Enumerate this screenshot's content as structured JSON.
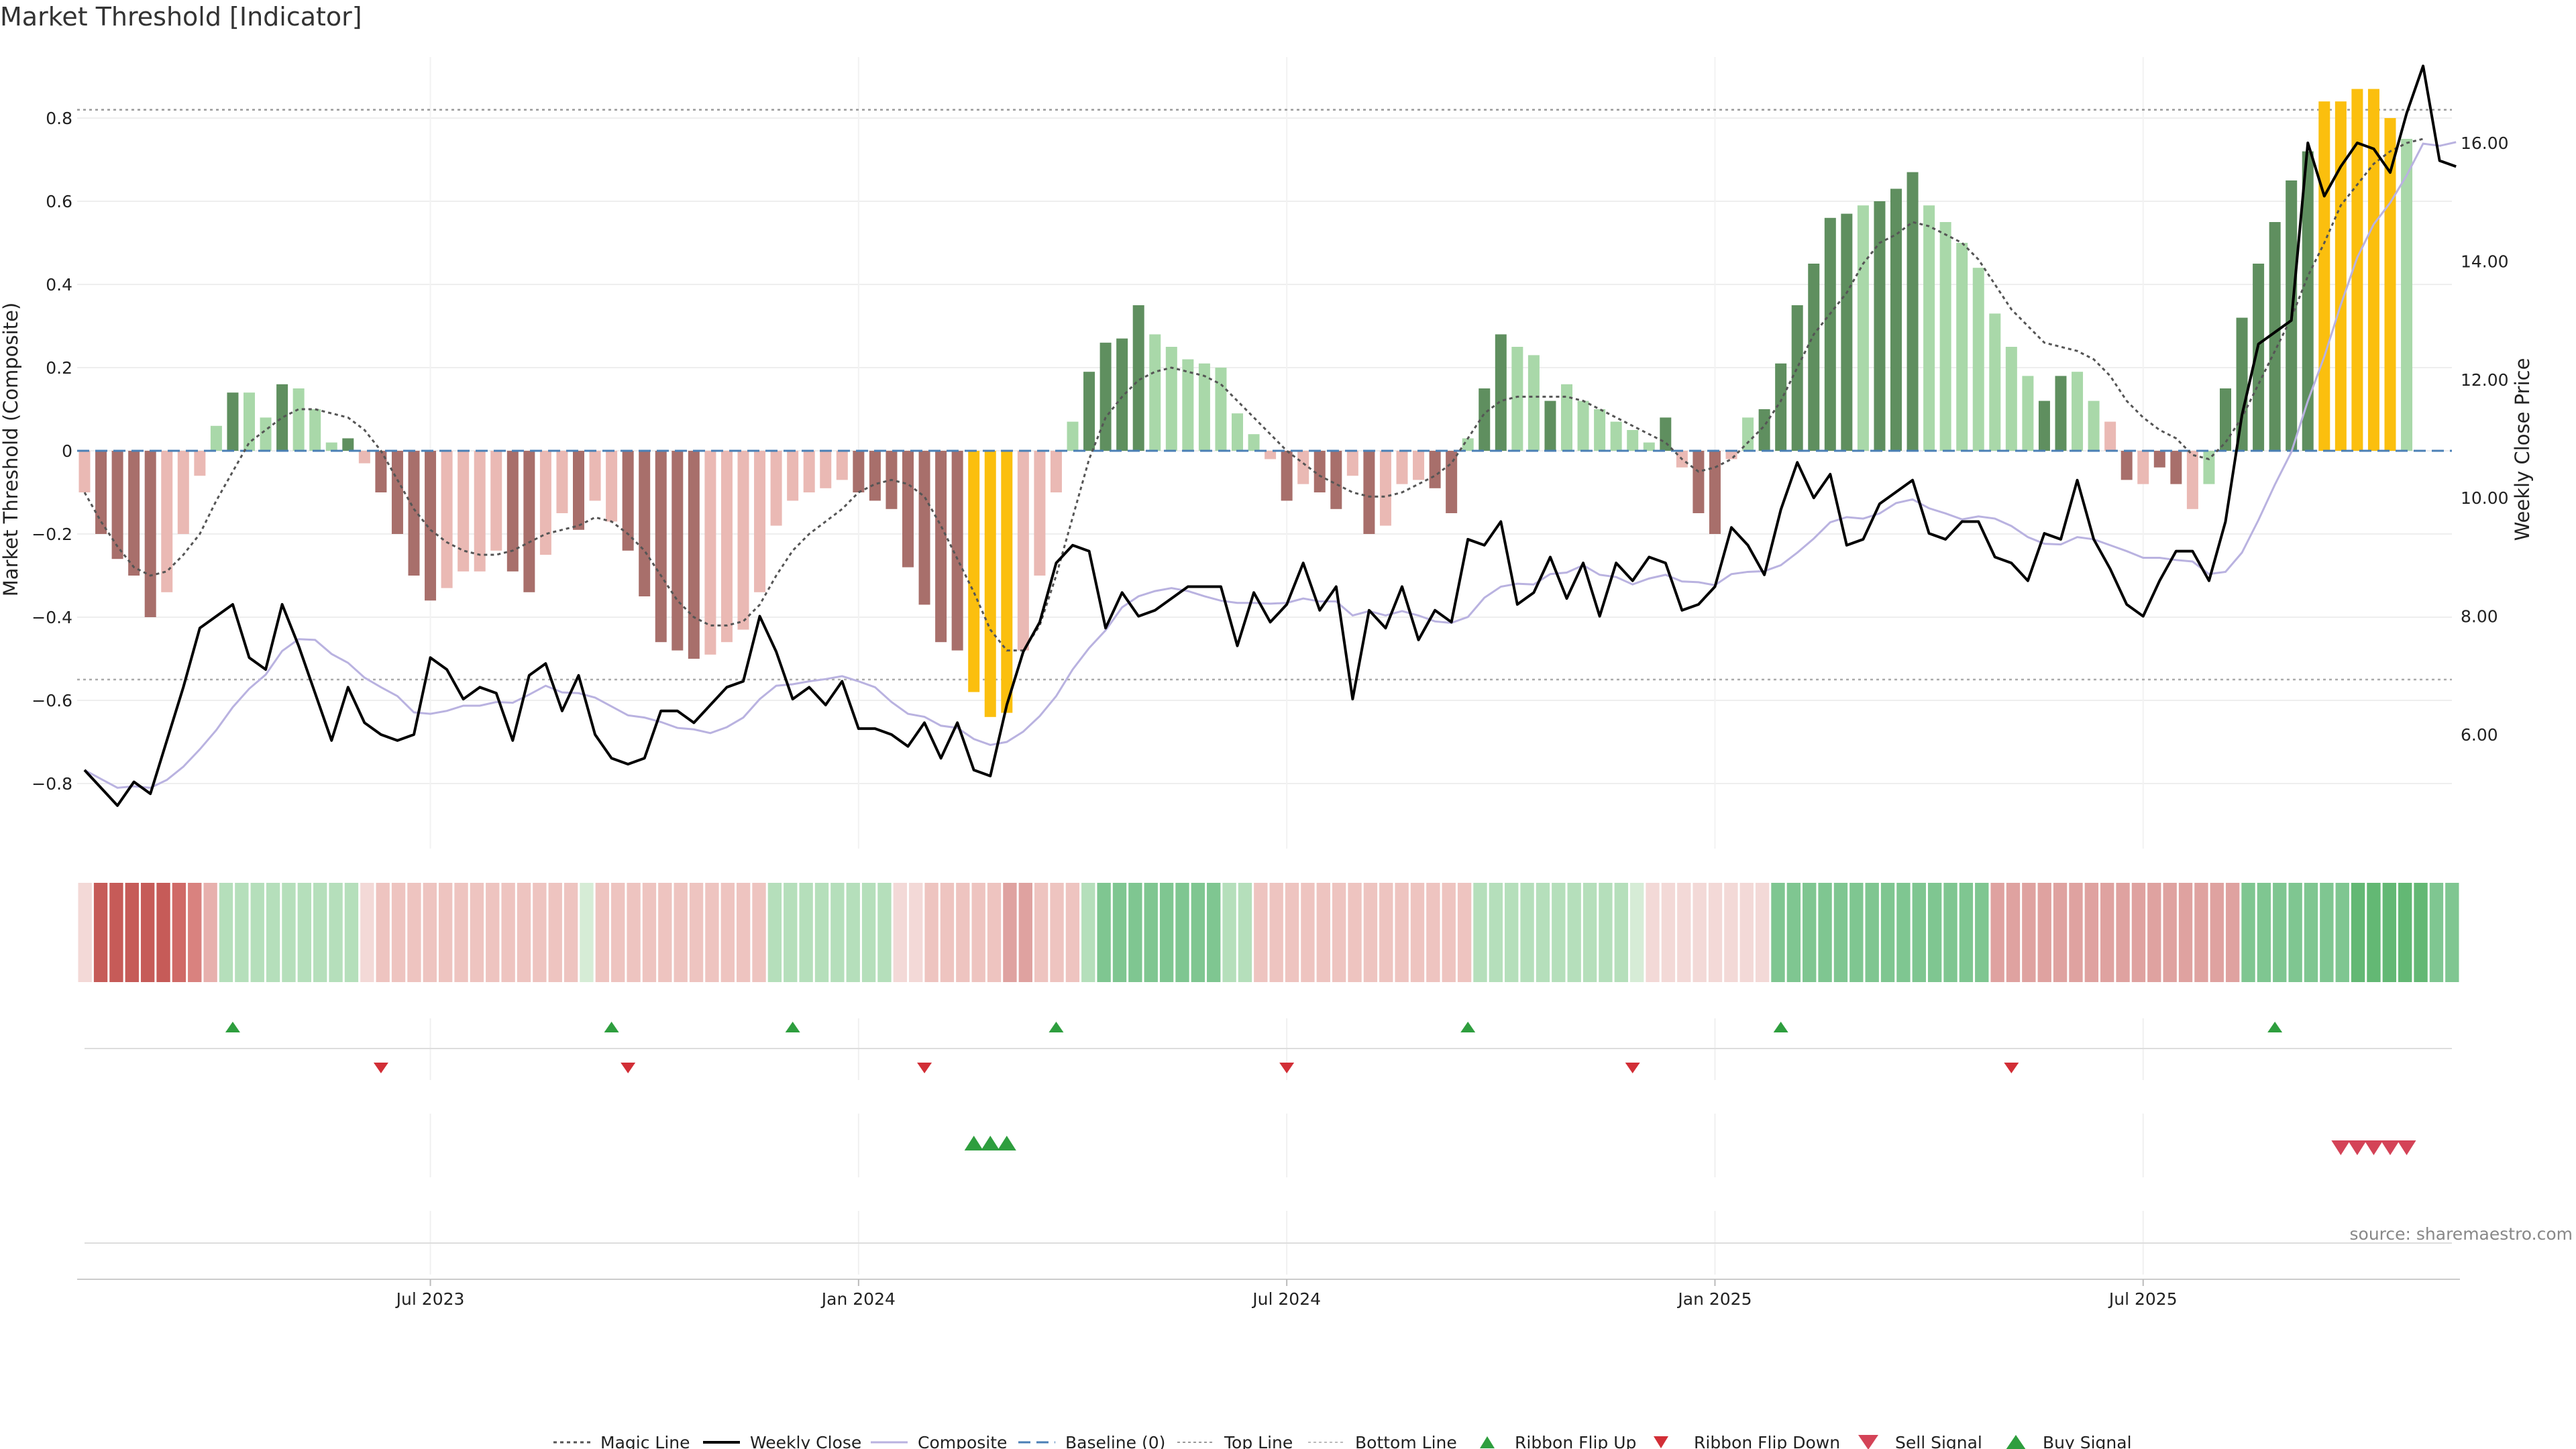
{
  "chart_data": {
    "type": "bar",
    "title": "Market Threshold [Indicator]",
    "ylabel": "Market Threshold (Composite)",
    "y2label": "Weekly Close Price",
    "source": "source: sharemaestro.com",
    "ylim": [
      -0.95,
      0.95
    ],
    "y2lim": [
      4.5,
      18.0
    ],
    "yticks": [
      -0.8,
      -0.6,
      -0.4,
      -0.2,
      0,
      0.2,
      0.4,
      0.6,
      0.8
    ],
    "ytick_labels": [
      "−0.8",
      "−0.6",
      "−0.4",
      "−0.2",
      "0",
      "0.2",
      "0.4",
      "0.6",
      "0.8"
    ],
    "y2ticks": [
      6,
      8,
      10,
      12,
      14,
      16
    ],
    "y2tick_labels": [
      "6.00",
      "8.00",
      "10.00",
      "12.00",
      "14.00",
      "16.00"
    ],
    "x_dates": [
      "Jul 2023",
      "Jan 2024",
      "Jul 2024",
      "Jan 2025",
      "Jul 2025"
    ],
    "x_tick_weeks": [
      21,
      47,
      73,
      99,
      125
    ],
    "top_line": 0.82,
    "bottom_line": -0.55,
    "composite": [
      -0.1,
      -0.2,
      -0.26,
      -0.3,
      -0.4,
      -0.34,
      -0.2,
      -0.06,
      0.06,
      0.14,
      0.14,
      0.08,
      0.16,
      0.15,
      0.1,
      0.02,
      0.03,
      -0.03,
      -0.1,
      -0.2,
      -0.3,
      -0.36,
      -0.33,
      -0.29,
      -0.29,
      -0.24,
      -0.29,
      -0.34,
      -0.25,
      -0.15,
      -0.19,
      -0.12,
      -0.17,
      -0.24,
      -0.35,
      -0.46,
      -0.48,
      -0.5,
      -0.49,
      -0.46,
      -0.43,
      -0.34,
      -0.18,
      -0.12,
      -0.1,
      -0.09,
      -0.07,
      -0.1,
      -0.12,
      -0.14,
      -0.28,
      -0.37,
      -0.46,
      -0.48,
      -0.58,
      -0.64,
      -0.63,
      -0.48,
      -0.3,
      -0.1,
      0.07,
      0.19,
      0.26,
      0.27,
      0.35,
      0.28,
      0.25,
      0.22,
      0.21,
      0.2,
      0.09,
      0.04,
      -0.02,
      -0.12,
      -0.08,
      -0.1,
      -0.14,
      -0.06,
      -0.2,
      -0.18,
      -0.08,
      -0.07,
      -0.09,
      -0.15,
      0.03,
      0.15,
      0.28,
      0.25,
      0.23,
      0.12,
      0.16,
      0.12,
      0.1,
      0.07,
      0.05,
      0.02,
      0.08,
      -0.04,
      -0.15,
      -0.2,
      -0.02,
      0.08,
      0.1,
      0.21,
      0.35,
      0.45,
      0.56,
      0.57,
      0.59,
      0.6,
      0.63,
      0.67,
      0.59,
      0.55,
      0.5,
      0.44,
      0.33,
      0.25,
      0.18,
      0.12,
      0.18,
      0.19,
      0.12,
      0.07,
      -0.07,
      -0.08,
      -0.04,
      -0.08,
      -0.14,
      -0.08,
      0.15,
      0.32,
      0.45,
      0.55,
      0.65,
      0.72,
      0.84,
      0.84,
      0.87,
      0.87,
      0.8,
      0.75
    ],
    "bar_tone": [
      "lr",
      "dr",
      "dr",
      "dr",
      "dr",
      "lr",
      "lr",
      "lr",
      "lg",
      "dg",
      "lg",
      "lg",
      "dg",
      "lg",
      "lg",
      "lg",
      "dg",
      "lr",
      "dr",
      "dr",
      "dr",
      "dr",
      "lr",
      "lr",
      "lr",
      "lr",
      "dr",
      "dr",
      "lr",
      "lr",
      "dr",
      "lr",
      "lr",
      "dr",
      "dr",
      "dr",
      "dr",
      "dr",
      "lr",
      "lr",
      "lr",
      "lr",
      "lr",
      "lr",
      "lr",
      "lr",
      "lr",
      "dr",
      "dr",
      "dr",
      "dr",
      "dr",
      "dr",
      "dr",
      "y",
      "y",
      "y",
      "lr",
      "lr",
      "lr",
      "lg",
      "dg",
      "dg",
      "dg",
      "dg",
      "lg",
      "lg",
      "lg",
      "lg",
      "lg",
      "lg",
      "lg",
      "lr",
      "dr",
      "lr",
      "dr",
      "dr",
      "lr",
      "dr",
      "lr",
      "lr",
      "lr",
      "dr",
      "dr",
      "lg",
      "dg",
      "dg",
      "lg",
      "lg",
      "dg",
      "lg",
      "lg",
      "lg",
      "lg",
      "lg",
      "lg",
      "dg",
      "lr",
      "dr",
      "dr",
      "lr",
      "lg",
      "dg",
      "dg",
      "dg",
      "dg",
      "dg",
      "dg",
      "lg",
      "dg",
      "dg",
      "dg",
      "lg",
      "lg",
      "lg",
      "lg",
      "lg",
      "lg",
      "lg",
      "dg",
      "dg",
      "lg",
      "lg",
      "lr",
      "dr",
      "lr",
      "dr",
      "dr",
      "lr",
      "lg",
      "dg",
      "dg",
      "dg",
      "dg",
      "dg",
      "dg",
      "y",
      "y",
      "y",
      "y",
      "y",
      "lg"
    ],
    "magic_line": [
      -0.1,
      -0.17,
      -0.23,
      -0.28,
      -0.3,
      -0.29,
      -0.25,
      -0.2,
      -0.12,
      -0.05,
      0.02,
      0.05,
      0.08,
      0.1,
      0.1,
      0.09,
      0.08,
      0.05,
      0.0,
      -0.07,
      -0.14,
      -0.19,
      -0.22,
      -0.24,
      -0.25,
      -0.25,
      -0.24,
      -0.22,
      -0.2,
      -0.19,
      -0.18,
      -0.16,
      -0.17,
      -0.2,
      -0.24,
      -0.3,
      -0.36,
      -0.4,
      -0.42,
      -0.42,
      -0.41,
      -0.37,
      -0.3,
      -0.24,
      -0.2,
      -0.17,
      -0.14,
      -0.1,
      -0.08,
      -0.07,
      -0.08,
      -0.11,
      -0.18,
      -0.26,
      -0.34,
      -0.43,
      -0.48,
      -0.48,
      -0.42,
      -0.3,
      -0.16,
      -0.02,
      0.08,
      0.13,
      0.17,
      0.19,
      0.2,
      0.19,
      0.18,
      0.16,
      0.12,
      0.08,
      0.04,
      0.0,
      -0.03,
      -0.06,
      -0.08,
      -0.1,
      -0.11,
      -0.11,
      -0.1,
      -0.08,
      -0.06,
      -0.03,
      0.03,
      0.09,
      0.12,
      0.13,
      0.13,
      0.13,
      0.13,
      0.12,
      0.1,
      0.08,
      0.06,
      0.04,
      0.02,
      -0.02,
      -0.05,
      -0.04,
      -0.02,
      0.02,
      0.06,
      0.12,
      0.2,
      0.28,
      0.33,
      0.38,
      0.45,
      0.5,
      0.52,
      0.55,
      0.54,
      0.52,
      0.5,
      0.46,
      0.4,
      0.34,
      0.3,
      0.26,
      0.25,
      0.24,
      0.22,
      0.18,
      0.12,
      0.08,
      0.05,
      0.03,
      -0.01,
      -0.02,
      0.02,
      0.08,
      0.16,
      0.24,
      0.32,
      0.42,
      0.5,
      0.59,
      0.64,
      0.69,
      0.72,
      0.74,
      0.75
    ],
    "weekly_close": [
      5.4,
      5.1,
      4.8,
      5.2,
      5.0,
      5.9,
      6.8,
      7.8,
      8.0,
      8.2,
      7.3,
      7.1,
      8.2,
      7.5,
      6.7,
      5.9,
      6.8,
      6.2,
      6.0,
      5.9,
      6.0,
      7.3,
      7.1,
      6.6,
      6.8,
      6.7,
      5.9,
      7.0,
      7.2,
      6.4,
      7.0,
      6.0,
      5.6,
      5.5,
      5.6,
      6.4,
      6.4,
      6.2,
      6.5,
      6.8,
      6.9,
      8.0,
      7.4,
      6.6,
      6.8,
      6.5,
      6.9,
      6.1,
      6.1,
      6.0,
      5.8,
      6.2,
      5.6,
      6.2,
      5.4,
      5.3,
      6.5,
      7.4,
      7.9,
      8.9,
      9.2,
      9.1,
      7.8,
      8.4,
      8.0,
      8.1,
      8.3,
      8.5,
      8.5,
      8.5,
      7.5,
      8.4,
      7.9,
      8.2,
      8.9,
      8.1,
      8.5,
      6.6,
      8.1,
      7.8,
      8.5,
      7.6,
      8.1,
      7.9,
      9.3,
      9.2,
      9.6,
      8.2,
      8.4,
      9.0,
      8.3,
      8.9,
      8.0,
      8.9,
      8.6,
      9.0,
      8.9,
      8.1,
      8.2,
      8.5,
      9.5,
      9.2,
      8.7,
      9.8,
      10.6,
      10.0,
      10.4,
      9.2,
      9.3,
      9.9,
      10.1,
      10.3,
      9.4,
      9.3,
      9.6,
      9.6,
      9.0,
      8.9,
      8.6,
      9.4,
      9.3,
      10.3,
      9.3,
      8.8,
      8.2,
      8.0,
      8.6,
      9.1,
      9.1,
      8.6,
      9.6,
      11.4,
      12.6,
      12.8,
      13.0,
      16.0,
      15.1,
      15.6,
      16.0,
      15.9,
      15.5,
      16.5,
      17.3,
      15.7,
      15.6
    ]
  },
  "legend": {
    "magic_line": "Magic Line",
    "weekly_close": "Weekly Close",
    "composite": "Composite",
    "baseline": "Baseline (0)",
    "top_line": "Top Line",
    "bottom_line": "Bottom Line",
    "ribbon_flip_up": "Ribbon Flip Up",
    "ribbon_flip_down": "Ribbon Flip Down",
    "sell_signal": "Sell Signal",
    "buy_signal": "Buy Signal"
  },
  "ribbon": {
    "tones": [
      "L1",
      "R4",
      "R4",
      "R4",
      "R4",
      "R4",
      "R3",
      "R2",
      "R1",
      "G2",
      "G2",
      "G2",
      "G2",
      "G2",
      "G2",
      "G2",
      "G2",
      "G2",
      "L1",
      "L2",
      "L2",
      "L2",
      "L2",
      "L2",
      "L2",
      "L2",
      "L2",
      "L2",
      "L2",
      "L2",
      "L2",
      "L2",
      "G1",
      "L2",
      "L2",
      "L2",
      "L2",
      "L2",
      "L2",
      "L2",
      "L2",
      "L2",
      "L2",
      "L2",
      "G2",
      "G2",
      "G2",
      "G2",
      "G2",
      "G2",
      "G2",
      "G2",
      "L1",
      "L1",
      "L2",
      "L2",
      "L2",
      "L2",
      "L2",
      "L3",
      "L3",
      "L2",
      "L2",
      "L2",
      "G2",
      "G3",
      "G3",
      "G3",
      "G3",
      "G3",
      "G3",
      "G3",
      "G3",
      "G2",
      "G2",
      "L2",
      "L2",
      "L2",
      "L2",
      "L2",
      "L2",
      "L2",
      "L2",
      "L2",
      "L2",
      "L2",
      "L2",
      "L2",
      "L2",
      "G2",
      "G2",
      "G2",
      "G2",
      "G2",
      "G2",
      "G2",
      "G2",
      "G2",
      "G2",
      "G1",
      "L1",
      "L1",
      "L1",
      "L1",
      "L1",
      "L1",
      "L1",
      "L1",
      "G3",
      "G3",
      "G3",
      "G3",
      "G3",
      "G3",
      "G3",
      "G3",
      "G3",
      "G3",
      "G3",
      "G3",
      "G3",
      "G3",
      "L3",
      "L3",
      "L3",
      "L3",
      "L3",
      "L3",
      "L3",
      "L3",
      "L3",
      "L3",
      "L3",
      "L3",
      "L3",
      "L3",
      "L3",
      "L3",
      "G3",
      "G3",
      "G3",
      "G3",
      "G3",
      "G3",
      "G3",
      "G4",
      "G4",
      "G4",
      "G4",
      "G4",
      "G3",
      "G3"
    ],
    "colors": {
      "L1": "#f3d9d7",
      "L2": "#eec4c0",
      "L3": "#dfa2a0",
      "R1": "#e7b0ad",
      "R2": "#d9827f",
      "R3": "#d06a67",
      "R4": "#c65b58",
      "G1": "#d6ecd6",
      "G2": "#b5dfbb",
      "G3": "#7fc691",
      "G4": "#63b874"
    }
  },
  "signals": {
    "ribbon_flip_up_weeks": [
      9,
      32,
      43,
      59,
      84,
      103,
      133
    ],
    "ribbon_flip_down_weeks": [
      18,
      33,
      51,
      73,
      94,
      117
    ],
    "buy_signal_weeks": [
      54,
      55,
      56
    ],
    "sell_signal_weeks": [
      137,
      138,
      139,
      140,
      141
    ]
  },
  "colors": {
    "dark_green": "#5f8f5f",
    "light_green": "#a9d8a9",
    "dark_red": "#a86f6b",
    "light_red": "#eab9b4",
    "yellow": "#fbbf0e",
    "weekly_close": "#000000",
    "composite": "#b9b2e0",
    "baseline": "#4a7fb5",
    "magic_line": "#555555",
    "flip_up": "#2e9e3e",
    "flip_down": "#d22e36",
    "buy": "#2e9e3e",
    "sell": "#d44357"
  }
}
